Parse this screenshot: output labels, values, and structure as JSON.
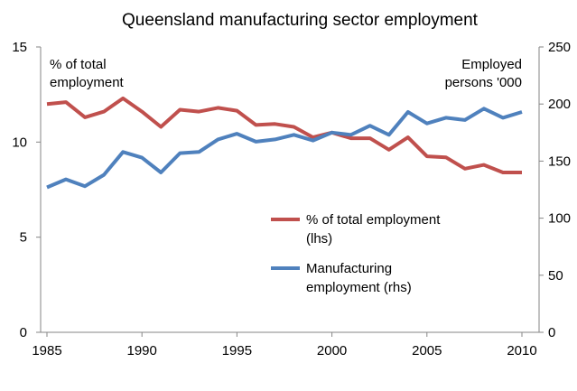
{
  "chart_data": {
    "type": "line",
    "title": "Queensland manufacturing sector employment",
    "left_axis_label": [
      "% of total",
      "employment"
    ],
    "right_axis_label": [
      "Employed",
      "persons '000"
    ],
    "x": [
      1985,
      1986,
      1987,
      1988,
      1989,
      1990,
      1991,
      1992,
      1993,
      1994,
      1995,
      1996,
      1997,
      1998,
      1999,
      2000,
      2001,
      2002,
      2003,
      2004,
      2005,
      2006,
      2007,
      2008,
      2009,
      2010
    ],
    "x_ticks": [
      "1985",
      "1990",
      "1995",
      "2000",
      "2005",
      "2010"
    ],
    "xlim": [
      1985,
      2010
    ],
    "ylim_left": [
      0,
      15
    ],
    "ylim_right": [
      0,
      250
    ],
    "left_ticks": [
      "0",
      "5",
      "10",
      "15"
    ],
    "right_ticks": [
      "0",
      "50",
      "100",
      "150",
      "200",
      "250"
    ],
    "grid": false,
    "legend_placement": "center-right",
    "series": [
      {
        "name": "% of total employment (lhs)",
        "legend_lines": [
          "% of total employment",
          "(lhs)"
        ],
        "axis": "left",
        "color": "#c0504d",
        "values": [
          12.0,
          12.1,
          11.3,
          11.6,
          12.3,
          11.6,
          10.8,
          11.7,
          11.6,
          11.8,
          11.65,
          10.9,
          10.95,
          10.8,
          10.25,
          10.5,
          10.2,
          10.2,
          9.6,
          10.25,
          9.25,
          9.2,
          8.6,
          8.8,
          8.4,
          8.4
        ]
      },
      {
        "name": "Manufacturing employment (rhs)",
        "legend_lines": [
          "Manufacturing",
          "employment (rhs)"
        ],
        "axis": "right",
        "color": "#4f81bd",
        "values": [
          127,
          134,
          128,
          138,
          158,
          153,
          140,
          157,
          158,
          169,
          174,
          167,
          169,
          173,
          168,
          175,
          173,
          181,
          173,
          193,
          183,
          188,
          186,
          196,
          188,
          193
        ]
      }
    ]
  }
}
